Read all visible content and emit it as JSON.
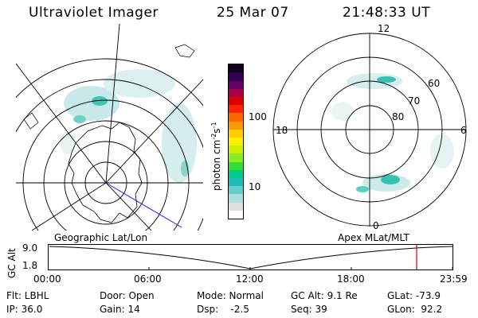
{
  "header": {
    "title": "Ultraviolet Imager",
    "date": "25 Mar 07",
    "time": "21:48:33 UT"
  },
  "geo_map": {
    "label": "Geographic Lat/Lon"
  },
  "apex_map": {
    "label": "Apex MLat/MLT",
    "mlt_top": "12",
    "mlt_left": "18",
    "mlt_right": "6",
    "mlt_bottom": "0",
    "lat_labels": [
      "60",
      "70",
      "80"
    ]
  },
  "colorbar": {
    "unit_label": "photon cm",
    "unit_exp1": "-2",
    "unit_s": "s",
    "unit_exp2": "-1",
    "tick_100": "100",
    "tick_10": "10",
    "colors": [
      "#ffffff",
      "#dddddd",
      "#aadddd",
      "#66cccc",
      "#22bbbb",
      "#00cc88",
      "#33dd33",
      "#88ee22",
      "#ccee00",
      "#ffee00",
      "#ffcc00",
      "#ff9900",
      "#ff6600",
      "#ff2200",
      "#dd0000",
      "#aa0044",
      "#660066",
      "#330055",
      "#110022"
    ]
  },
  "altitude_plot": {
    "ylabel": "GC Alt",
    "ytick_top": "9.0",
    "ytick_bottom": "1.8",
    "xticks": [
      "00:00",
      "06:00",
      "12:00",
      "18:00",
      "23:59"
    ],
    "current_marker_color": "#cc0000"
  },
  "info": {
    "flt": "Flt: LBHL",
    "ip": "IP: 36.0",
    "door": "Door: Open",
    "gain": "Gain: 14",
    "mode": "Mode: Normal",
    "dsp": "Dsp:    -2.5",
    "gc_alt": "GC Alt: 9.1 Re",
    "seq": "Seq: 39",
    "glat": "GLat: -73.9",
    "glon": "GLon:  92.2"
  }
}
